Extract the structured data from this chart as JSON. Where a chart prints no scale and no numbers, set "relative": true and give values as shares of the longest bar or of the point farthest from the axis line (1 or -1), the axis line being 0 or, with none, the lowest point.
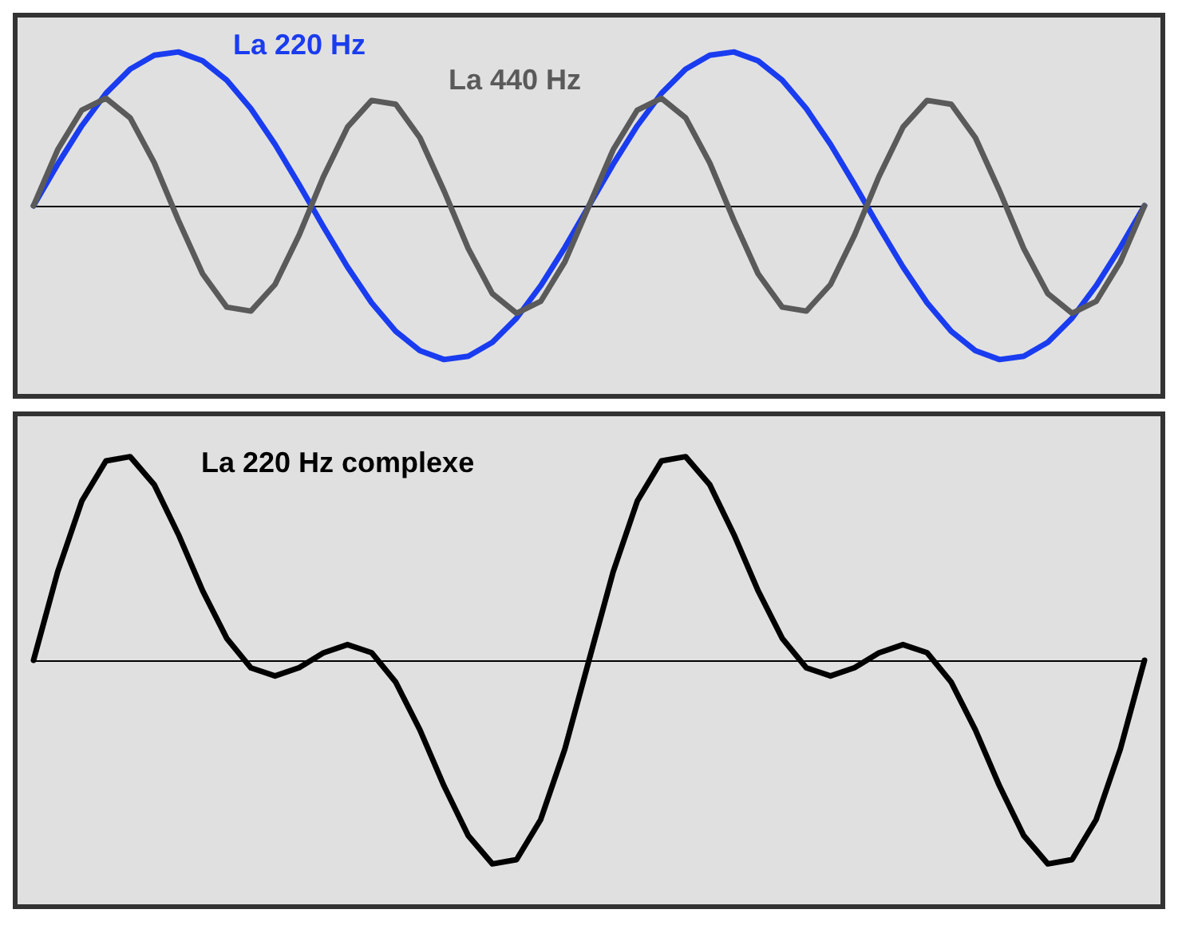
{
  "chart_data": [
    {
      "type": "line",
      "relative": true,
      "marker": "none",
      "categories": [
        null,
        null,
        null,
        null,
        null,
        null,
        null,
        null,
        null,
        null,
        null,
        null,
        null,
        null,
        null,
        null,
        null,
        null,
        null,
        null,
        null,
        null,
        null,
        null,
        null,
        null,
        null,
        null,
        null,
        null,
        null,
        null,
        null,
        null,
        null,
        null,
        null,
        null,
        null,
        null,
        null,
        null,
        null,
        null,
        null,
        null,
        null
      ],
      "series": [
        {
          "name": "La 220 Hz",
          "color": "#1a3cf0",
          "values": [
            0,
            0.27,
            0.52,
            0.731,
            0.888,
            0.979,
            1,
            0.942,
            0.817,
            0.631,
            0.399,
            0.137,
            -0.136,
            -0.398,
            -0.631,
            -0.817,
            -0.942,
            -1,
            -0.979,
            -0.888,
            -0.731,
            -0.52,
            -0.271,
            0,
            0.27,
            0.52,
            0.731,
            0.888,
            0.979,
            1,
            0.942,
            0.817,
            0.631,
            0.399,
            0.137,
            -0.136,
            -0.398,
            -0.631,
            -0.817,
            -0.942,
            -1,
            -0.979,
            -0.888,
            -0.731,
            -0.52,
            -0.271,
            0
          ]
        },
        {
          "name": "La 440 Hz",
          "color": "#5a5a5a",
          "values": [
            0,
            0.364,
            0.622,
            0.699,
            0.572,
            0.279,
            -0.095,
            -0.442,
            -0.659,
            -0.685,
            -0.512,
            -0.19,
            0.188,
            0.511,
            0.685,
            0.66,
            0.442,
            0.096,
            -0.278,
            -0.572,
            -0.699,
            -0.622,
            -0.365,
            0,
            0.364,
            0.622,
            0.699,
            0.572,
            0.279,
            -0.095,
            -0.442,
            -0.659,
            -0.685,
            -0.512,
            -0.19,
            0.188,
            0.511,
            0.685,
            0.66,
            0.442,
            0.096,
            -0.278,
            -0.572,
            -0.699,
            -0.622,
            -0.365,
            0
          ]
        }
      ]
    },
    {
      "type": "line",
      "relative": true,
      "marker": "none",
      "categories": [
        null,
        null,
        null,
        null,
        null,
        null,
        null,
        null,
        null,
        null,
        null,
        null,
        null,
        null,
        null,
        null,
        null,
        null,
        null,
        null,
        null,
        null,
        null,
        null,
        null,
        null,
        null,
        null,
        null,
        null,
        null,
        null,
        null,
        null,
        null,
        null,
        null,
        null,
        null,
        null,
        null,
        null,
        null,
        null,
        null,
        null,
        null
      ],
      "series": [
        {
          "name": "La 220 Hz complexe",
          "color": "#000000",
          "values": [
            0,
            0.434,
            0.782,
            0.979,
            1,
            0.862,
            0.618,
            0.342,
            0.108,
            -0.037,
            -0.077,
            -0.036,
            0.036,
            0.077,
            0.037,
            -0.108,
            -0.342,
            -0.618,
            -0.861,
            -1,
            -0.979,
            -0.782,
            -0.436,
            0,
            0.434,
            0.782,
            0.979,
            1,
            0.862,
            0.618,
            0.342,
            0.108,
            -0.037,
            -0.077,
            -0.036,
            0.036,
            0.077,
            0.037,
            -0.108,
            -0.342,
            -0.618,
            -0.861,
            -1,
            -0.979,
            -0.782,
            -0.436,
            0
          ]
        }
      ]
    }
  ]
}
